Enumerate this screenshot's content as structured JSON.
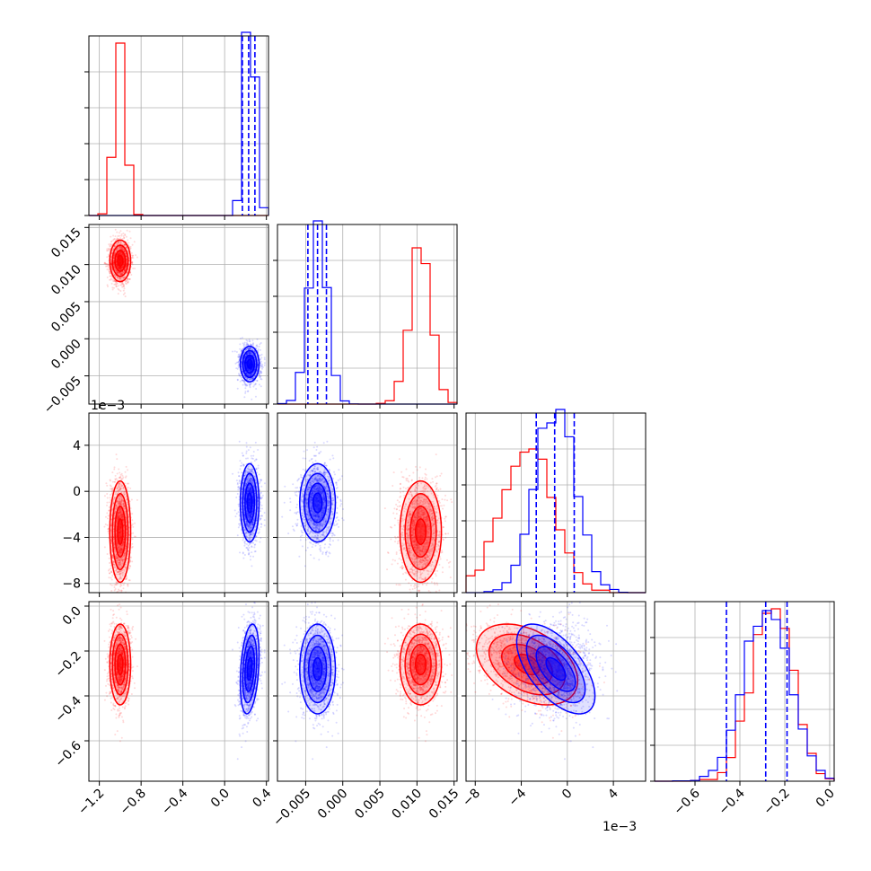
{
  "chart_data": {
    "type": "scatter",
    "title": "",
    "series": [
      {
        "name": "",
        "color": "#ff0000"
      },
      {
        "name": "",
        "color": "#0000ff"
      }
    ],
    "variables": [
      {
        "index": 0,
        "range": [
          -1.3,
          0.42
        ],
        "ticks": [
          "-1.2",
          "-0.8",
          "-0.4",
          "0.0",
          "0.4"
        ],
        "tick_values": [
          -1.2,
          -0.8,
          -0.4,
          0.0,
          0.4
        ],
        "offset_label": ""
      },
      {
        "index": 1,
        "range": [
          -0.0088,
          0.0154
        ],
        "ticks": [
          "-0.005",
          "0.000",
          "0.005",
          "0.010",
          "0.015"
        ],
        "tick_values": [
          -0.005,
          0.0,
          0.005,
          0.01,
          0.015
        ],
        "offset_label": ""
      },
      {
        "index": 2,
        "range": [
          -0.0088,
          0.0068
        ],
        "ticks": [
          "-8",
          "-4",
          "0",
          "4"
        ],
        "tick_values": [
          -0.008,
          -0.004,
          0.0,
          0.004
        ],
        "offset_label": "1e−3"
      },
      {
        "index": 3,
        "range": [
          -0.78,
          0.02
        ],
        "ticks": [
          "-0.6",
          "-0.4",
          "-0.2",
          "0.0"
        ],
        "tick_values": [
          -0.6,
          -0.4,
          -0.2,
          0.0
        ],
        "offset_label": ""
      }
    ],
    "distributions": {
      "red": {
        "means": [
          -1.0,
          0.0105,
          -0.0035,
          -0.26
        ],
        "sds": [
          0.05,
          0.0014,
          0.0022,
          0.09
        ],
        "correlations": [
          [
            2,
            3,
            -0.4
          ]
        ]
      },
      "blue": {
        "means": [
          0.24,
          -0.0034,
          -0.001,
          -0.28
        ],
        "sds": [
          0.045,
          0.0012,
          0.0017,
          0.1
        ],
        "correlations": [
          [
            2,
            3,
            -0.6
          ],
          [
            0,
            3,
            0.3
          ]
        ]
      }
    },
    "quantile_lines": {
      "color": "#0000ff",
      "values": [
        [
          0.17,
          0.23,
          0.29
        ],
        [
          -0.0047,
          -0.0034,
          -0.0022
        ],
        [
          -0.0027,
          -0.0011,
          0.0006
        ],
        [
          -0.46,
          -0.285,
          -0.19
        ]
      ]
    },
    "histogram_peaks": [
      {
        "red": 0.96,
        "blue": 1.08
      },
      {
        "red": 0.87,
        "blue": 1.07
      },
      {
        "red": 0.8,
        "blue": 1.05
      },
      {
        "red": 0.96,
        "blue": 0.95
      }
    ],
    "grid": true,
    "legend": "none"
  }
}
